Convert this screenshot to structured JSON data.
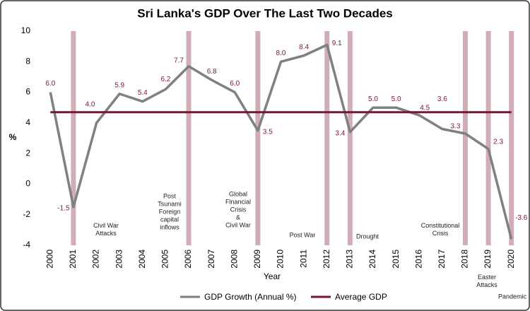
{
  "chart_data": {
    "type": "line",
    "title": "Sri Lanka's GDP Over The Last Two Decades",
    "x_label": "Year",
    "y_label": "%",
    "categories": [
      "2000",
      "2001",
      "2002",
      "2003",
      "2004",
      "2005",
      "2006",
      "2007",
      "2008",
      "2009",
      "2010",
      "2011",
      "2012",
      "2013",
      "2014",
      "2015",
      "2016",
      "2017",
      "2018",
      "2019",
      "2020"
    ],
    "series": [
      {
        "name": "GDP Growth (Annual %)",
        "color": "#808080",
        "values": [
          6.0,
          -1.5,
          4.0,
          5.9,
          5.4,
          6.2,
          7.7,
          6.8,
          6.0,
          3.5,
          8.0,
          8.4,
          9.1,
          3.4,
          5.0,
          5.0,
          4.5,
          3.6,
          3.3,
          2.3,
          -3.6
        ],
        "value_labels": [
          "6.0",
          "-1.5",
          "4.0",
          "5.9",
          "5.4",
          "6.2",
          "7.7",
          "6.8",
          "6.0",
          "3.5",
          "8.0",
          "8.4",
          "9.1",
          "3.4",
          "5.0",
          "5.0",
          "4.5",
          "3.6",
          "3.3",
          "2.3",
          "-3.6"
        ]
      },
      {
        "name": "Average GDP",
        "color": "#7b1530",
        "values": [
          4.7,
          4.7,
          4.7,
          4.7,
          4.7,
          4.7,
          4.7,
          4.7,
          4.7,
          4.7,
          4.7,
          4.7,
          4.7,
          4.7,
          4.7,
          4.7,
          4.7,
          4.7,
          4.7,
          4.7,
          4.7
        ]
      }
    ],
    "events": [
      {
        "year": "2001",
        "lines": [
          "Civil War",
          "Attacks"
        ]
      },
      {
        "year": "2006",
        "lines": [
          "Post",
          "Tsunami",
          "Foreign",
          "capital",
          "inflows"
        ]
      },
      {
        "year": "2009",
        "lines": [
          "Global",
          "Financial",
          "Crisis",
          "&",
          "Civil War"
        ]
      },
      {
        "year": "2012",
        "lines": [
          "Post War"
        ]
      },
      {
        "year": "2013",
        "lines": [
          "Drought"
        ]
      },
      {
        "year": "2018",
        "lines": [
          "Constitutional",
          "Crisis"
        ]
      },
      {
        "year": "2019",
        "lines": [
          "Easter",
          "Attacks"
        ]
      },
      {
        "year": "2020",
        "lines": [
          "Pandemic"
        ]
      }
    ],
    "event_color": "#c9a0a8",
    "ylim": [
      -4,
      10
    ],
    "yticks": [
      -4,
      -2,
      0,
      2,
      4,
      6,
      8,
      10
    ],
    "grid": false,
    "legend": "bottom"
  }
}
